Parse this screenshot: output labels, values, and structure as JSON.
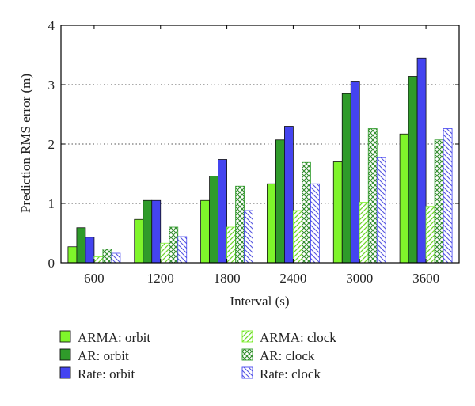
{
  "chart_data": {
    "type": "bar",
    "xlabel": "Interval (s)",
    "ylabel": "Prediction RMS error (m)",
    "ylim": [
      0,
      4
    ],
    "yticks": [
      "0",
      "1",
      "2",
      "3",
      "4"
    ],
    "categories": [
      "600",
      "1200",
      "1800",
      "2400",
      "3000",
      "3600"
    ],
    "grid": "dotted, on major ticks",
    "series": [
      {
        "name": "ARMA: orbit",
        "color": "#7ff52b",
        "pattern": "solid",
        "values": [
          0.27,
          0.73,
          1.05,
          1.33,
          1.7,
          2.17
        ]
      },
      {
        "name": "AR: orbit",
        "color": "#2f9b2a",
        "pattern": "solid",
        "values": [
          0.59,
          1.05,
          1.46,
          2.07,
          2.85,
          3.14
        ]
      },
      {
        "name": "Rate: orbit",
        "color": "#4444f0",
        "pattern": "solid",
        "values": [
          0.43,
          1.05,
          1.74,
          2.3,
          3.06,
          3.45
        ]
      },
      {
        "name": "ARMA: clock",
        "color": "#7ff52b",
        "pattern": "diagonal",
        "values": [
          0.1,
          0.33,
          0.6,
          0.88,
          1.02,
          0.95
        ]
      },
      {
        "name": "AR: clock",
        "color": "#2f9b2a",
        "pattern": "crosshatch",
        "values": [
          0.23,
          0.6,
          1.29,
          1.69,
          2.26,
          2.07
        ]
      },
      {
        "name": "Rate: clock",
        "color": "#4444f0",
        "pattern": "diagonal-reverse",
        "values": [
          0.16,
          0.44,
          0.88,
          1.33,
          1.77,
          2.26
        ]
      }
    ],
    "legend_position": "below plot, two columns"
  }
}
